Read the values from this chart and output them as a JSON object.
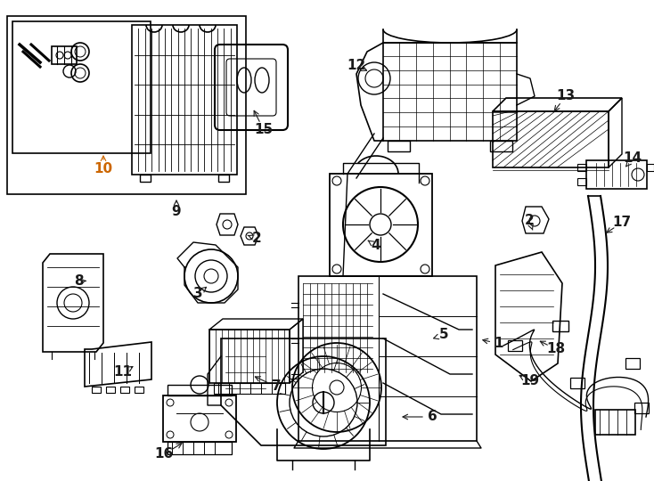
{
  "bg_color": "#ffffff",
  "line_color": "#000000",
  "label_color_orange": "#cc6600",
  "label_color_black": "#1a1a1a",
  "fig_width": 7.34,
  "fig_height": 5.4,
  "dpi": 100,
  "gray_light": "#d0d0d0",
  "gray_mid": "#a0a0a0"
}
